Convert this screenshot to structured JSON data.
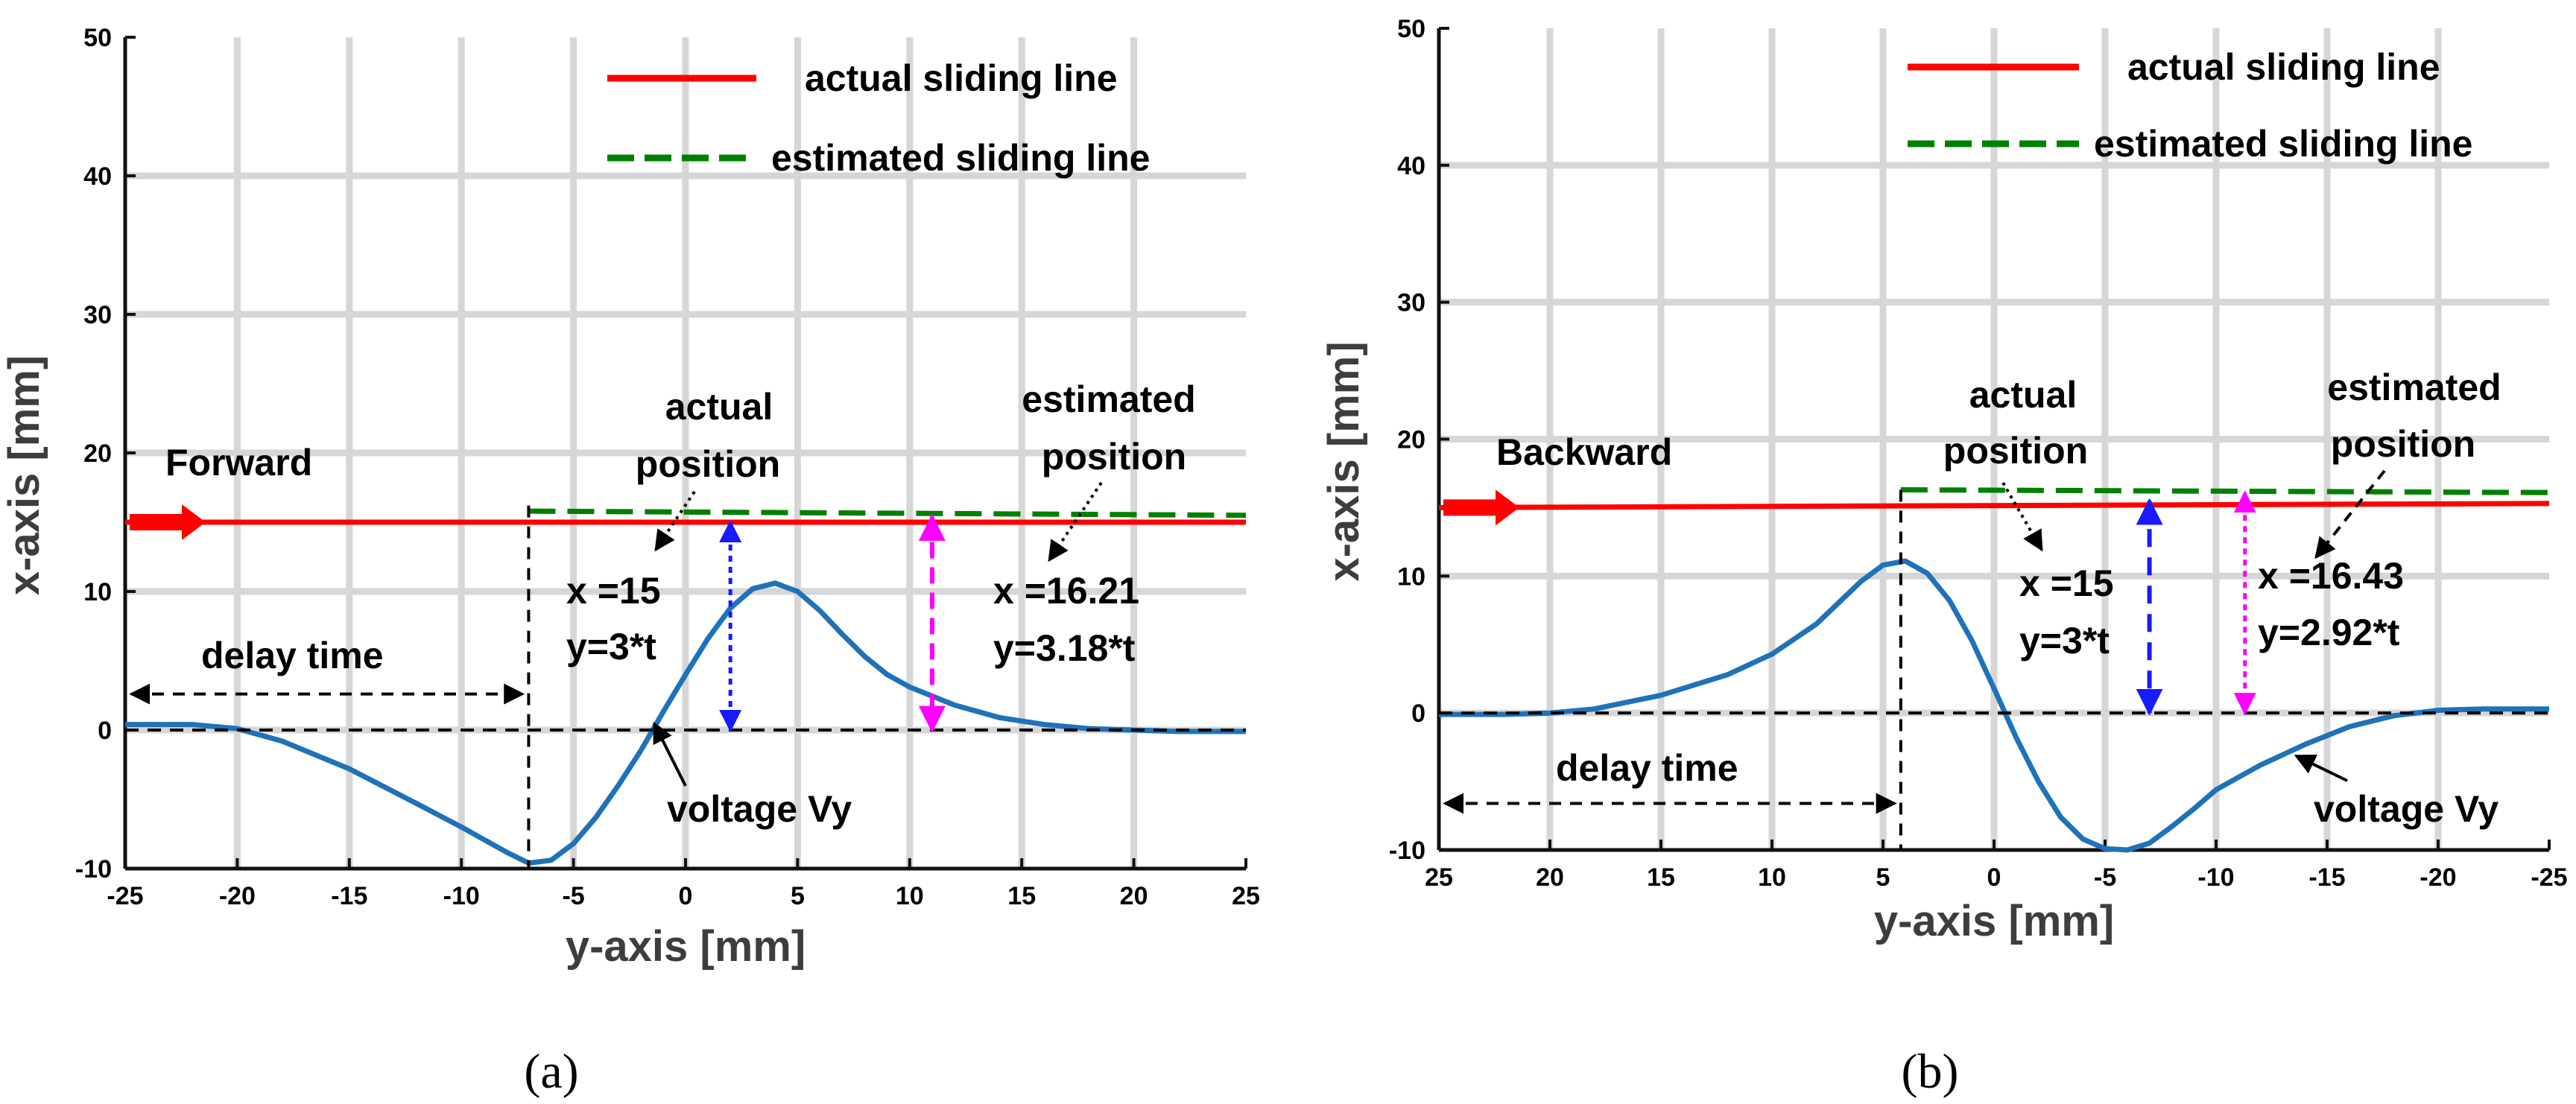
{
  "colors": {
    "actual": "#ff0000",
    "estimated": "#008000",
    "voltage": "#1f72b8",
    "blue_arrow": "#1a1aff",
    "magenta_arrow": "#ff00ff",
    "grid": "#d6d6d6"
  },
  "chart_data": [
    {
      "type": "line",
      "panel": "(a)",
      "xlabel": "y-axis [mm]",
      "ylabel": "x-axis [mm]",
      "xlim": [
        -25,
        25
      ],
      "ylim": [
        -10,
        50
      ],
      "xticks": [
        -25,
        -20,
        -15,
        -10,
        -5,
        0,
        5,
        10,
        15,
        20,
        25
      ],
      "yticks": [
        -10,
        0,
        10,
        20,
        30,
        40,
        50
      ],
      "grid": true,
      "legend": [
        {
          "label": "actual sliding line",
          "style": "solid-red"
        },
        {
          "label": "estimated sliding line",
          "style": "dashed-green"
        }
      ],
      "series": [
        {
          "name": "actual sliding line",
          "x": [
            -25,
            25
          ],
          "y": [
            15,
            15
          ]
        },
        {
          "name": "estimated sliding line",
          "x": [
            -7,
            25
          ],
          "y": [
            15.8,
            15.5
          ]
        },
        {
          "name": "voltage Vy",
          "x": [
            -25,
            -22,
            -20,
            -18,
            -15,
            -12,
            -10,
            -8,
            -7,
            -6,
            -5,
            -4,
            -3,
            -2,
            -1,
            0,
            1,
            2,
            3,
            4,
            5,
            6,
            7,
            8,
            9,
            10,
            12,
            14,
            16,
            18,
            20,
            22,
            25
          ],
          "y": [
            0.4,
            0.4,
            0.1,
            -0.8,
            -2.8,
            -5.3,
            -7.0,
            -8.8,
            -9.6,
            -9.4,
            -8.2,
            -6.3,
            -4.0,
            -1.5,
            1.3,
            4.0,
            6.6,
            8.8,
            10.2,
            10.6,
            10.0,
            8.6,
            6.9,
            5.3,
            4.0,
            3.1,
            1.8,
            0.9,
            0.4,
            0.1,
            0.0,
            -0.1,
            -0.1
          ]
        }
      ],
      "labels": {
        "direction": "Forward",
        "delay": "delay time",
        "actual_title_1": "actual",
        "actual_title_2": "position",
        "actual_x": "x =15",
        "actual_y": "y=3*t",
        "est_title_1": "estimated",
        "est_title_2": "position",
        "est_x": "x =16.21",
        "est_y": "y=3.18*t",
        "voltage": "voltage Vy"
      },
      "caption": "(a)"
    },
    {
      "type": "line",
      "panel": "(b)",
      "xlabel": "y-axis [mm]",
      "ylabel": "x-axis [mm]",
      "xlim": [
        25,
        -25
      ],
      "ylim": [
        -10,
        50
      ],
      "xticks": [
        25,
        20,
        15,
        10,
        5,
        0,
        -5,
        -10,
        -15,
        -20,
        -25
      ],
      "yticks": [
        -10,
        0,
        10,
        20,
        30,
        40,
        50
      ],
      "grid": true,
      "legend": [
        {
          "label": "actual sliding line",
          "style": "solid-red"
        },
        {
          "label": "estimated sliding line",
          "style": "dashed-green"
        }
      ],
      "series": [
        {
          "name": "actual sliding line",
          "x": [
            25,
            -25
          ],
          "y": [
            15,
            15.3
          ]
        },
        {
          "name": "estimated sliding line",
          "x": [
            4.2,
            -25
          ],
          "y": [
            16.3,
            16.1
          ]
        },
        {
          "name": "voltage Vy",
          "x": [
            25,
            22,
            20,
            18,
            15,
            12,
            10,
            8,
            6,
            5,
            4,
            3,
            2,
            1,
            0,
            -1,
            -2,
            -3,
            -4,
            -5,
            -6,
            -7,
            -8,
            -9,
            -10,
            -12,
            -14,
            -16,
            -18,
            -20,
            -22,
            -25
          ],
          "y": [
            -0.1,
            -0.1,
            0.0,
            0.3,
            1.3,
            2.8,
            4.3,
            6.5,
            9.6,
            10.8,
            11.1,
            10.2,
            8.2,
            5.3,
            1.8,
            -1.8,
            -5.0,
            -7.6,
            -9.2,
            -9.9,
            -10.0,
            -9.5,
            -8.3,
            -7.0,
            -5.6,
            -3.8,
            -2.3,
            -1.0,
            -0.2,
            0.2,
            0.3,
            0.3
          ]
        }
      ],
      "labels": {
        "direction": "Backward",
        "delay": "delay time",
        "actual_title_1": "actual",
        "actual_title_2": "position",
        "actual_x": "x =15",
        "actual_y": "y=3*t",
        "est_title_1": "estimated",
        "est_title_2": "position",
        "est_x": "x =16.43",
        "est_y": "y=2.92*t",
        "voltage": "voltage Vy"
      },
      "caption": "(b)"
    }
  ]
}
